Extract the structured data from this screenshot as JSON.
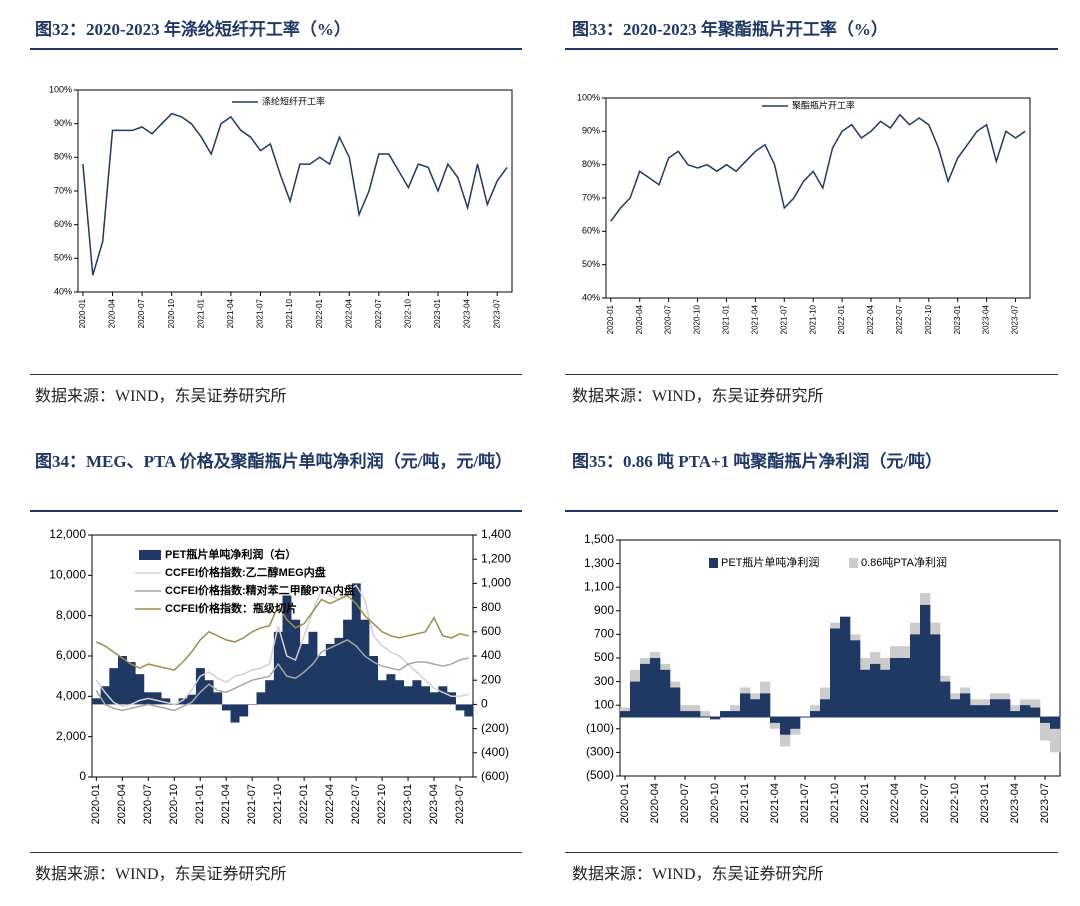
{
  "chart_data": [
    {
      "type": "line",
      "title": "图32：2020-2023 年涤纶短纤开工率（%）",
      "source": "数据来源：WIND，东吴证券研究所",
      "categories": [
        "2020-01",
        null,
        null,
        "2020-04",
        null,
        null,
        "2020-07",
        null,
        null,
        "2020-10",
        null,
        null,
        "2021-01",
        null,
        null,
        "2021-04",
        null,
        null,
        "2021-07",
        null,
        null,
        "2021-10",
        null,
        null,
        "2022-01",
        null,
        null,
        "2022-04",
        null,
        null,
        "2022-07",
        null,
        null,
        "2022-10",
        null,
        null,
        "2023-01",
        null,
        null,
        "2023-04",
        null,
        null,
        "2023-07",
        null
      ],
      "series": [
        {
          "name": "涤纶短纤开工率",
          "color": "#1f3a5f",
          "values": [
            78,
            45,
            55,
            88,
            88,
            88,
            89,
            87,
            90,
            93,
            92,
            90,
            86,
            81,
            90,
            92,
            88,
            86,
            82,
            84,
            75,
            67,
            78,
            78,
            80,
            78,
            86,
            80,
            63,
            70,
            81,
            81,
            76,
            71,
            78,
            77,
            70,
            78,
            74,
            65,
            78,
            66,
            73,
            77
          ]
        }
      ],
      "ylim": [
        40,
        100
      ],
      "yticks": [
        {
          "value": 40,
          "label": "40%"
        },
        {
          "value": 50,
          "label": "50%"
        },
        {
          "value": 60,
          "label": "60%"
        },
        {
          "value": 70,
          "label": "70%"
        },
        {
          "value": 80,
          "label": "80%"
        },
        {
          "value": 90,
          "label": "90%"
        },
        {
          "value": 100,
          "label": "100%"
        }
      ]
    },
    {
      "type": "line",
      "title": "图33：2020-2023 年聚酯瓶片开工率（%）",
      "source": "数据来源：WIND，东吴证券研究所",
      "categories": [
        "2020-01",
        null,
        null,
        "2020-04",
        null,
        null,
        "2020-07",
        null,
        null,
        "2020-10",
        null,
        null,
        "2021-01",
        null,
        null,
        "2021-04",
        null,
        null,
        "2021-07",
        null,
        null,
        "2021-10",
        null,
        null,
        "2022-01",
        null,
        null,
        "2022-04",
        null,
        null,
        "2022-07",
        null,
        null,
        "2022-10",
        null,
        null,
        "2023-01",
        null,
        null,
        "2023-04",
        null,
        null,
        "2023-07",
        null
      ],
      "series": [
        {
          "name": "聚酯瓶片开工率",
          "color": "#1f3a5f",
          "values": [
            63,
            67,
            70,
            78,
            76,
            74,
            82,
            84,
            80,
            79,
            80,
            78,
            80,
            78,
            81,
            84,
            86,
            80,
            67,
            70,
            75,
            78,
            73,
            85,
            90,
            92,
            88,
            90,
            93,
            91,
            95,
            92,
            94,
            92,
            85,
            75,
            82,
            86,
            90,
            92,
            81,
            90,
            88,
            90
          ]
        }
      ],
      "ylim": [
        40,
        100
      ],
      "yticks": [
        {
          "value": 40,
          "label": "40%"
        },
        {
          "value": 50,
          "label": "50%"
        },
        {
          "value": 60,
          "label": "60%"
        },
        {
          "value": 70,
          "label": "70%"
        },
        {
          "value": 80,
          "label": "80%"
        },
        {
          "value": 90,
          "label": "90%"
        },
        {
          "value": 100,
          "label": "100%"
        }
      ]
    },
    {
      "type": "mixed",
      "title": "图34：MEG、PTA 价格及聚酯瓶片单吨净利润（元/吨，元/吨）",
      "source": "数据来源：WIND，东吴证券研究所",
      "categories": [
        "2020-01",
        null,
        null,
        "2020-04",
        null,
        null,
        "2020-07",
        null,
        null,
        "2020-10",
        null,
        null,
        "2021-01",
        null,
        null,
        "2021-04",
        null,
        null,
        "2021-07",
        null,
        null,
        "2021-10",
        null,
        null,
        "2022-01",
        null,
        null,
        "2022-04",
        null,
        null,
        "2022-07",
        null,
        null,
        "2022-10",
        null,
        null,
        "2023-01",
        null,
        null,
        "2023-04",
        null,
        null,
        "2023-07",
        null
      ],
      "series": [
        {
          "name": "PET瓶片单吨净利润（右）",
          "type": "bar",
          "axis": "y2",
          "color": "#1f3864",
          "values": [
            50,
            150,
            300,
            400,
            350,
            250,
            100,
            100,
            50,
            0,
            50,
            80,
            300,
            200,
            100,
            -50,
            -150,
            -100,
            0,
            100,
            200,
            600,
            900,
            700,
            500,
            600,
            400,
            500,
            550,
            700,
            1000,
            700,
            400,
            200,
            250,
            200,
            150,
            200,
            150,
            100,
            150,
            100,
            -50,
            -100
          ]
        },
        {
          "name": "CCFEI价格指数:乙二醇MEG内盘",
          "type": "line",
          "color": "#d0d0d0",
          "values": [
            4800,
            4200,
            3700,
            3500,
            3600,
            3800,
            3900,
            3800,
            3700,
            3600,
            3800,
            4300,
            5000,
            5200,
            4900,
            4700,
            5000,
            5100,
            5300,
            5400,
            5600,
            7500,
            6000,
            5800,
            7000,
            8200,
            9300,
            9000,
            8800,
            9200,
            9500,
            8800,
            7000,
            6500,
            6200,
            6000,
            5600,
            5200,
            4800,
            4400,
            4200,
            4000,
            4000,
            4100
          ]
        },
        {
          "name": "CCFEI价格指数:精对苯二甲酸PTA内盘",
          "type": "line",
          "color": "#a6a6a6",
          "values": [
            4300,
            3600,
            3400,
            3300,
            3400,
            3500,
            3600,
            3500,
            3400,
            3300,
            3500,
            3700,
            4200,
            4600,
            4300,
            4200,
            4400,
            4600,
            4800,
            4900,
            5000,
            5600,
            5000,
            4900,
            5200,
            5600,
            6200,
            6400,
            6600,
            6800,
            6500,
            6000,
            5700,
            5500,
            5400,
            5300,
            5600,
            5700,
            5700,
            5600,
            5500,
            5600,
            5800,
            5900
          ]
        },
        {
          "name": "CCFEI价格指数：瓶级切片",
          "type": "line",
          "color": "#9c8f4a",
          "values": [
            6700,
            6500,
            6200,
            5900,
            5600,
            5400,
            5600,
            5500,
            5400,
            5300,
            5700,
            6200,
            6800,
            7200,
            7000,
            6800,
            6700,
            6900,
            7200,
            7400,
            7500,
            8500,
            7800,
            7400,
            7600,
            8200,
            8800,
            8600,
            8800,
            9000,
            8600,
            8000,
            7600,
            7200,
            7000,
            6900,
            7000,
            7100,
            7200,
            7900,
            7000,
            6900,
            7100,
            7000
          ]
        }
      ],
      "ylim": [
        0,
        12000
      ],
      "yticks": [
        0,
        {
          "value": 2000,
          "label": "2,000"
        },
        {
          "value": 4000,
          "label": "4,000"
        },
        {
          "value": 6000,
          "label": "6,000"
        },
        {
          "value": 8000,
          "label": "8,000"
        },
        {
          "value": 10000,
          "label": "10,000"
        },
        {
          "value": 12000,
          "label": "12,000"
        }
      ],
      "y2lim": [
        -600,
        1400
      ],
      "y2ticks": [
        {
          "value": -600,
          "label": "(600)"
        },
        {
          "value": -400,
          "label": "(400)"
        },
        {
          "value": -200,
          "label": "(200)"
        },
        0,
        200,
        400,
        600,
        800,
        {
          "value": 1000,
          "label": "1,000"
        },
        {
          "value": 1200,
          "label": "1,200"
        },
        {
          "value": 1400,
          "label": "1,400"
        }
      ],
      "negative_tick_color": "#e00000"
    },
    {
      "type": "bar",
      "title": "图35：0.86 吨 PTA+1 吨聚酯瓶片净利润（元/吨）",
      "source": "数据来源：WIND，东吴证券研究所",
      "categories": [
        "2020-01",
        null,
        null,
        "2020-04",
        null,
        null,
        "2020-07",
        null,
        null,
        "2020-10",
        null,
        null,
        "2021-01",
        null,
        null,
        "2021-04",
        null,
        null,
        "2021-07",
        null,
        null,
        "2021-10",
        null,
        null,
        "2022-01",
        null,
        null,
        "2022-04",
        null,
        null,
        "2022-07",
        null,
        null,
        "2022-10",
        null,
        null,
        "2023-01",
        null,
        null,
        "2023-04",
        null,
        null,
        "2023-07",
        null
      ],
      "series": [
        {
          "name": "PET瓶片单吨净利润",
          "color": "#1f3864",
          "values": [
            50,
            300,
            450,
            500,
            400,
            250,
            50,
            50,
            0,
            -20,
            50,
            50,
            200,
            150,
            200,
            -50,
            -150,
            -100,
            0,
            50,
            150,
            750,
            850,
            650,
            400,
            450,
            400,
            500,
            500,
            700,
            950,
            700,
            300,
            150,
            200,
            100,
            100,
            150,
            150,
            50,
            100,
            80,
            -50,
            -100
          ]
        },
        {
          "name": "0.86吨PTA净利润",
          "color": "#cccccc",
          "values": [
            80,
            400,
            500,
            550,
            450,
            300,
            100,
            100,
            50,
            0,
            50,
            100,
            250,
            200,
            300,
            -100,
            -250,
            -150,
            0,
            100,
            250,
            800,
            850,
            700,
            500,
            550,
            500,
            600,
            600,
            800,
            1050,
            800,
            350,
            200,
            250,
            150,
            150,
            200,
            200,
            100,
            150,
            150,
            -200,
            -300
          ]
        }
      ],
      "ylim": [
        -500,
        1500
      ],
      "yticks": [
        {
          "value": -500,
          "label": "(500)"
        },
        {
          "value": -300,
          "label": "(300)"
        },
        {
          "value": -100,
          "label": "(100)"
        },
        100,
        300,
        500,
        700,
        900,
        {
          "value": 1100,
          "label": "1,100"
        },
        {
          "value": 1300,
          "label": "1,300"
        },
        {
          "value": 1500,
          "label": "1,500"
        }
      ]
    }
  ]
}
